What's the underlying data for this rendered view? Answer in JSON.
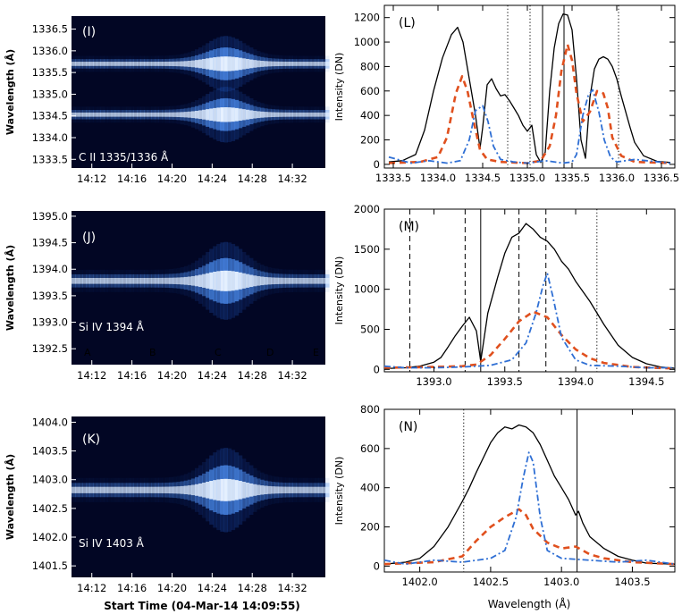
{
  "chart_data": [
    {
      "panel": "(I)",
      "type": "heatmap",
      "line_label": "C II 1335/1336 Å",
      "ylabel": "Wavelength (Å)",
      "yticks": [
        "1336.5",
        "1336.0",
        "1335.5",
        "1335.0",
        "1334.5",
        "1334.0",
        "1333.5"
      ],
      "xticks": [
        "14:12",
        "14:16",
        "14:20",
        "14:24",
        "14:28",
        "14:32"
      ],
      "ylim": [
        1333.3,
        1336.8
      ],
      "bands": [
        {
          "center": 1335.7,
          "width": 0.14,
          "peak": 1.0
        },
        {
          "center": 1334.53,
          "width": 0.14,
          "peak": 1.0
        }
      ]
    },
    {
      "panel": "(J)",
      "type": "heatmap",
      "line_label": "Si IV 1394 Å",
      "ylabel": "Wavelength (Å)",
      "yticks": [
        "1395.0",
        "1394.5",
        "1394.0",
        "1393.5",
        "1393.0",
        "1392.5"
      ],
      "xticks": [
        "14:12",
        "14:16",
        "14:20",
        "14:24",
        "14:28",
        "14:32"
      ],
      "ylim": [
        1392.2,
        1395.1
      ],
      "markers": [
        "A",
        "B",
        "C",
        "D",
        "E"
      ],
      "bands": [
        {
          "center": 1393.78,
          "width": 0.16,
          "peak": 1.0
        }
      ]
    },
    {
      "panel": "(K)",
      "type": "heatmap",
      "line_label": "Si IV 1403 Å",
      "ylabel": "Wavelength (Å)",
      "xlabel": "Start Time (04-Mar-14 14:09:55)",
      "yticks": [
        "1404.0",
        "1403.5",
        "1403.0",
        "1402.5",
        "1402.0",
        "1401.5"
      ],
      "xticks": [
        "14:12",
        "14:16",
        "14:20",
        "14:24",
        "14:28",
        "14:32"
      ],
      "ylim": [
        1401.3,
        1404.1
      ],
      "bands": [
        {
          "center": 1402.82,
          "width": 0.16,
          "peak": 1.0
        }
      ]
    },
    {
      "panel": "(L)",
      "type": "line",
      "ylabel": "Intensity (DN)",
      "xlabel": "",
      "xlim": [
        1333.4,
        1336.65
      ],
      "ylim": [
        -30,
        1300
      ],
      "xticks": [
        1333.5,
        1334.0,
        1334.5,
        1335.0,
        1335.5,
        1336.0,
        1336.5
      ],
      "yticks": [
        0,
        200,
        400,
        600,
        800,
        1000,
        1200
      ],
      "vlines": [
        {
          "x": 1334.78,
          "style": "dotted"
        },
        {
          "x": 1335.03,
          "style": "dotted"
        },
        {
          "x": 1335.17,
          "style": "solid"
        },
        {
          "x": 1335.41,
          "style": "solid"
        },
        {
          "x": 1336.02,
          "style": "dotted"
        }
      ],
      "series": [
        {
          "style": "solid-black",
          "x": [
            1333.45,
            1333.6,
            1333.75,
            1333.85,
            1333.95,
            1334.05,
            1334.15,
            1334.22,
            1334.28,
            1334.35,
            1334.42,
            1334.47,
            1334.5,
            1334.55,
            1334.6,
            1334.65,
            1334.7,
            1334.75,
            1334.8,
            1334.85,
            1334.9,
            1334.95,
            1335.0,
            1335.05,
            1335.1,
            1335.15,
            1335.2,
            1335.25,
            1335.3,
            1335.35,
            1335.4,
            1335.45,
            1335.5,
            1335.55,
            1335.6,
            1335.65,
            1335.7,
            1335.75,
            1335.8,
            1335.85,
            1335.9,
            1335.95,
            1336.0,
            1336.05,
            1336.1,
            1336.15,
            1336.2,
            1336.3,
            1336.45,
            1336.6
          ],
          "y": [
            20,
            30,
            80,
            280,
            600,
            870,
            1060,
            1120,
            1000,
            700,
            400,
            130,
            300,
            650,
            700,
            620,
            560,
            570,
            520,
            460,
            400,
            320,
            270,
            320,
            80,
            15,
            100,
            600,
            950,
            1150,
            1230,
            1220,
            1100,
            700,
            200,
            50,
            550,
            780,
            860,
            880,
            860,
            800,
            700,
            560,
            430,
            300,
            180,
            70,
            25,
            15
          ]
        },
        {
          "style": "dashed-orange",
          "x": [
            1333.45,
            1333.8,
            1334.0,
            1334.1,
            1334.2,
            1334.27,
            1334.33,
            1334.4,
            1334.47,
            1334.55,
            1334.7,
            1335.0,
            1335.15,
            1335.25,
            1335.32,
            1335.38,
            1335.45,
            1335.5,
            1335.55,
            1335.62,
            1335.7,
            1335.78,
            1335.85,
            1335.9,
            1335.95,
            1336.05,
            1336.2,
            1336.6
          ],
          "y": [
            10,
            20,
            60,
            220,
            580,
            720,
            600,
            350,
            120,
            40,
            20,
            10,
            30,
            150,
            400,
            760,
            980,
            850,
            580,
            350,
            430,
            600,
            580,
            460,
            220,
            70,
            20,
            10
          ]
        },
        {
          "style": "dashdot-blue",
          "x": [
            1333.45,
            1333.7,
            1333.9,
            1334.1,
            1334.25,
            1334.35,
            1334.42,
            1334.5,
            1334.56,
            1334.62,
            1334.7,
            1334.85,
            1335.0,
            1335.2,
            1335.4,
            1335.5,
            1335.55,
            1335.62,
            1335.68,
            1335.73,
            1335.8,
            1335.86,
            1335.93,
            1336.0,
            1336.2,
            1336.6
          ],
          "y": [
            60,
            10,
            30,
            10,
            30,
            200,
            440,
            480,
            350,
            150,
            40,
            20,
            10,
            30,
            10,
            20,
            80,
            400,
            560,
            610,
            430,
            200,
            60,
            20,
            40,
            10
          ]
        }
      ]
    },
    {
      "panel": "(M)",
      "type": "line",
      "ylabel": "Intensity (DN)",
      "xlabel": "",
      "xlim": [
        1392.65,
        1394.7
      ],
      "ylim": [
        -30,
        2000
      ],
      "xticks": [
        1393.0,
        1393.5,
        1394.0,
        1394.5
      ],
      "yticks": [
        0,
        500,
        1000,
        1500,
        2000
      ],
      "vlines": [
        {
          "x": 1392.83,
          "style": "dashed"
        },
        {
          "x": 1393.22,
          "style": "dashed"
        },
        {
          "x": 1393.33,
          "style": "solid"
        },
        {
          "x": 1393.6,
          "style": "dashed"
        },
        {
          "x": 1393.79,
          "style": "dashed"
        },
        {
          "x": 1394.15,
          "style": "dotted"
        }
      ],
      "series": [
        {
          "style": "solid-black",
          "x": [
            1392.65,
            1392.8,
            1392.9,
            1393.0,
            1393.05,
            1393.1,
            1393.15,
            1393.2,
            1393.25,
            1393.3,
            1393.33,
            1393.38,
            1393.45,
            1393.5,
            1393.55,
            1393.6,
            1393.65,
            1393.7,
            1393.75,
            1393.8,
            1393.85,
            1393.9,
            1393.95,
            1394.0,
            1394.1,
            1394.2,
            1394.3,
            1394.4,
            1394.5,
            1394.6,
            1394.7
          ],
          "y": [
            10,
            20,
            40,
            90,
            150,
            280,
            420,
            540,
            650,
            480,
            100,
            700,
            1150,
            1450,
            1650,
            1700,
            1820,
            1750,
            1650,
            1600,
            1500,
            1350,
            1250,
            1100,
            850,
            560,
            300,
            150,
            70,
            30,
            15
          ]
        },
        {
          "style": "dashed-orange",
          "x": [
            1392.65,
            1393.0,
            1393.2,
            1393.3,
            1393.4,
            1393.5,
            1393.6,
            1393.7,
            1393.8,
            1393.9,
            1394.0,
            1394.1,
            1394.2,
            1394.4,
            1394.7
          ],
          "y": [
            20,
            30,
            40,
            60,
            180,
            380,
            600,
            720,
            650,
            430,
            250,
            140,
            80,
            30,
            10
          ]
        },
        {
          "style": "dashdot-blue",
          "x": [
            1392.65,
            1392.8,
            1393.0,
            1393.2,
            1393.4,
            1393.55,
            1393.65,
            1393.72,
            1393.77,
            1393.8,
            1393.84,
            1393.9,
            1394.0,
            1394.1,
            1394.3,
            1394.5,
            1394.7
          ],
          "y": [
            40,
            20,
            20,
            30,
            50,
            120,
            330,
            700,
            1050,
            1200,
            900,
            400,
            120,
            50,
            40,
            20,
            20
          ]
        }
      ]
    },
    {
      "panel": "(N)",
      "type": "line",
      "ylabel": "Intensity (DN)",
      "xlabel": "Wavelength (Å)",
      "xlim": [
        1401.75,
        1403.8
      ],
      "ylim": [
        -30,
        800
      ],
      "xticks": [
        1402.0,
        1402.5,
        1403.0,
        1403.5
      ],
      "yticks": [
        0,
        200,
        400,
        600,
        800
      ],
      "vlines": [
        {
          "x": 1402.31,
          "style": "dotted"
        },
        {
          "x": 1403.11,
          "style": "solid"
        }
      ],
      "series": [
        {
          "style": "solid-black",
          "x": [
            1401.75,
            1401.9,
            1402.0,
            1402.1,
            1402.2,
            1402.3,
            1402.35,
            1402.4,
            1402.5,
            1402.55,
            1402.6,
            1402.65,
            1402.7,
            1402.75,
            1402.8,
            1402.85,
            1402.9,
            1402.95,
            1403.0,
            1403.05,
            1403.1,
            1403.12,
            1403.15,
            1403.2,
            1403.3,
            1403.4,
            1403.5,
            1403.6,
            1403.8
          ],
          "y": [
            10,
            20,
            40,
            100,
            200,
            330,
            400,
            480,
            630,
            680,
            710,
            700,
            720,
            710,
            680,
            620,
            540,
            460,
            400,
            340,
            260,
            280,
            220,
            150,
            90,
            50,
            30,
            15,
            10
          ]
        },
        {
          "style": "dashed-orange",
          "x": [
            1401.75,
            1402.1,
            1402.3,
            1402.4,
            1402.5,
            1402.6,
            1402.7,
            1402.75,
            1402.8,
            1402.9,
            1403.0,
            1403.1,
            1403.2,
            1403.3,
            1403.5,
            1403.8
          ],
          "y": [
            10,
            20,
            50,
            130,
            200,
            250,
            290,
            260,
            190,
            120,
            90,
            100,
            60,
            40,
            20,
            10
          ]
        },
        {
          "style": "dashdot-blue",
          "x": [
            1401.75,
            1401.9,
            1402.1,
            1402.3,
            1402.5,
            1402.6,
            1402.68,
            1402.73,
            1402.77,
            1402.8,
            1402.85,
            1402.9,
            1403.0,
            1403.2,
            1403.4,
            1403.6,
            1403.8
          ],
          "y": [
            30,
            10,
            30,
            20,
            40,
            80,
            250,
            450,
            580,
            530,
            250,
            80,
            40,
            30,
            20,
            30,
            10
          ]
        }
      ]
    }
  ]
}
